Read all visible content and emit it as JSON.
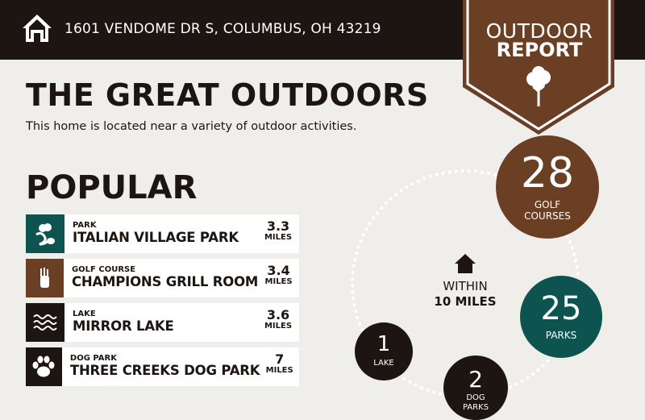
{
  "header": {
    "address": "1601 VENDOME DR S, COLUMBUS, OH 43219",
    "icon": "home-icon"
  },
  "banner": {
    "line1": "OUTDOOR",
    "line2": "REPORT",
    "icon": "tree-icon"
  },
  "intro": {
    "title": "THE GREAT OUTDOORS",
    "subtitle": "This home is located near a variety of outdoor activities."
  },
  "popular": {
    "heading": "POPULAR",
    "items": [
      {
        "category": "PARK",
        "name": "ITALIAN VILLAGE PARK",
        "distance": "3.3",
        "unit": "MILES",
        "icon": "park-icon",
        "color": "#0d5450"
      },
      {
        "category": "GOLF COURSE",
        "name": "CHAMPIONS GRILL ROOM",
        "distance": "3.4",
        "unit": "MILES",
        "icon": "golf-bag-icon",
        "color": "#6b3f24"
      },
      {
        "category": "LAKE",
        "name": "MIRROR LAKE",
        "distance": "3.6",
        "unit": "MILES",
        "icon": "waves-icon",
        "color": "#1c1512"
      },
      {
        "category": "DOG PARK",
        "name": "THREE CREEKS DOG PARK",
        "distance": "7",
        "unit": "MILES",
        "icon": "paw-icon",
        "color": "#1c1512"
      }
    ]
  },
  "nearby": {
    "within_line1": "WITHIN",
    "within_line2": "10 MILES",
    "counts": [
      {
        "count": "28",
        "label1": "GOLF COURSES",
        "color": "#6b3f24"
      },
      {
        "count": "25",
        "label1": "PARKS",
        "color": "#0d5450"
      },
      {
        "count": "1",
        "label1": "LAKE",
        "color": "#1c1512"
      },
      {
        "count": "2",
        "label1": "DOG",
        "label2": "PARKS",
        "color": "#1c1512"
      }
    ]
  }
}
